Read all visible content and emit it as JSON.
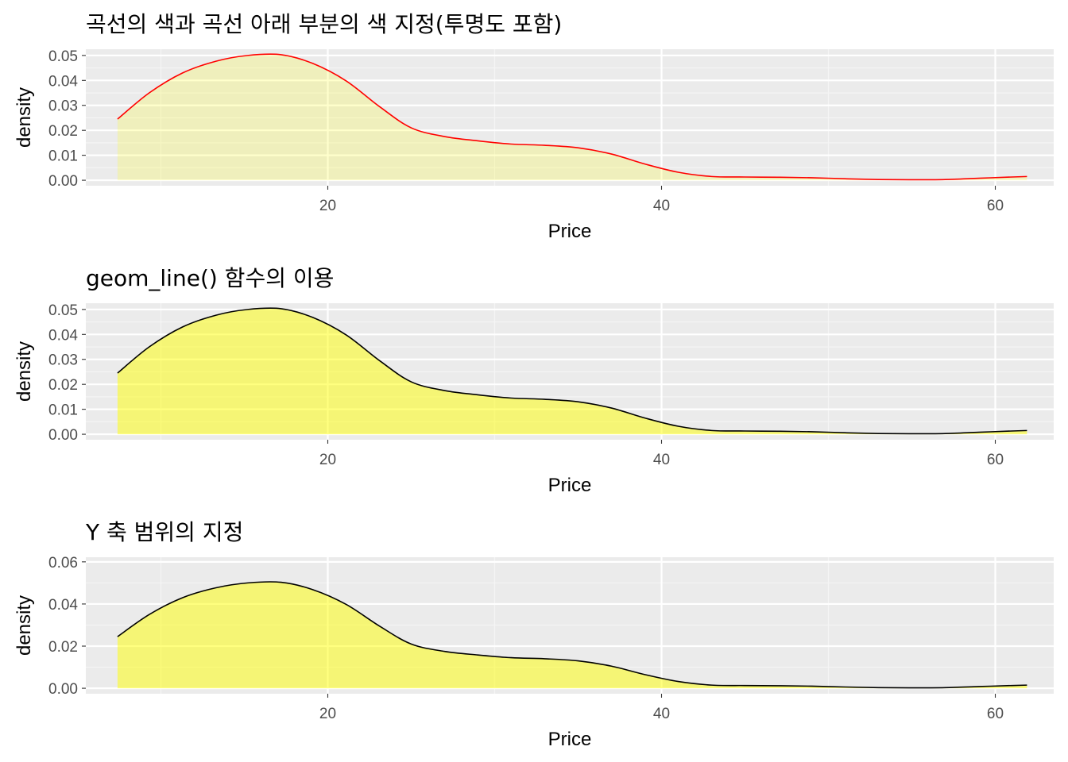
{
  "chart_data": [
    {
      "type": "area",
      "title": "곡선의 색과 곡선 아래 부분의 색 지정(투명도 포함)",
      "xlabel": "Price",
      "ylabel": "density",
      "xlim": [
        5.5,
        63.5
      ],
      "ylim": [
        -0.0022,
        0.0525
      ],
      "xticks": [
        20,
        40,
        60
      ],
      "xtick_labels": [
        "20",
        "40",
        "60"
      ],
      "yticks": [
        0.0,
        0.01,
        0.02,
        0.03,
        0.04,
        0.05
      ],
      "ytick_labels": [
        "0.00",
        "0.01",
        "0.02",
        "0.03",
        "0.04",
        "0.05"
      ],
      "grid": true,
      "line_color": "#ff0000",
      "fill_color": "#ffff00",
      "fill_alpha": 0.2,
      "x": [
        7.4,
        9.3,
        11.3,
        13.3,
        15.2,
        17.2,
        19.1,
        21.1,
        23.1,
        25.0,
        27.0,
        29.0,
        31.0,
        33.0,
        35.0,
        37.0,
        39.0,
        41.0,
        43.0,
        45.0,
        47.0,
        49.0,
        51.0,
        53.0,
        55.0,
        57.0,
        59.0,
        61.0,
        61.9
      ],
      "series": [
        {
          "values": [
            0.0245,
            0.035,
            0.043,
            0.0477,
            0.05,
            0.0503,
            0.0468,
            0.0398,
            0.0295,
            0.021,
            0.0175,
            0.0158,
            0.0145,
            0.014,
            0.013,
            0.0105,
            0.0065,
            0.0032,
            0.0015,
            0.0013,
            0.0012,
            0.001,
            0.0006,
            0.0003,
            0.0002,
            0.0003,
            0.0008,
            0.0013,
            0.0015
          ]
        }
      ]
    },
    {
      "type": "area",
      "title": "geom_line() 함수의 이용",
      "xlabel": "Price",
      "ylabel": "density",
      "xlim": [
        5.5,
        63.5
      ],
      "ylim": [
        -0.0022,
        0.0525
      ],
      "xticks": [
        20,
        40,
        60
      ],
      "xtick_labels": [
        "20",
        "40",
        "60"
      ],
      "yticks": [
        0.0,
        0.01,
        0.02,
        0.03,
        0.04,
        0.05
      ],
      "ytick_labels": [
        "0.00",
        "0.01",
        "0.02",
        "0.03",
        "0.04",
        "0.05"
      ],
      "grid": true,
      "line_color": "#000000",
      "fill_color": "#ffff00",
      "fill_alpha": 0.5,
      "x": [
        7.4,
        9.3,
        11.3,
        13.3,
        15.2,
        17.2,
        19.1,
        21.1,
        23.1,
        25.0,
        27.0,
        29.0,
        31.0,
        33.0,
        35.0,
        37.0,
        39.0,
        41.0,
        43.0,
        45.0,
        47.0,
        49.0,
        51.0,
        53.0,
        55.0,
        57.0,
        59.0,
        61.0,
        61.9
      ],
      "series": [
        {
          "values": [
            0.0245,
            0.035,
            0.043,
            0.0477,
            0.05,
            0.0503,
            0.0468,
            0.0398,
            0.0295,
            0.021,
            0.0175,
            0.0158,
            0.0145,
            0.014,
            0.013,
            0.0105,
            0.0065,
            0.0032,
            0.0015,
            0.0013,
            0.0012,
            0.001,
            0.0006,
            0.0003,
            0.0002,
            0.0003,
            0.0008,
            0.0013,
            0.0015
          ]
        }
      ]
    },
    {
      "type": "area",
      "title": "Y 축 범위의 지정",
      "xlabel": "Price",
      "ylabel": "density",
      "xlim": [
        5.5,
        63.5
      ],
      "ylim": [
        -0.0026,
        0.0622
      ],
      "xticks": [
        20,
        40,
        60
      ],
      "xtick_labels": [
        "20",
        "40",
        "60"
      ],
      "yticks": [
        0.0,
        0.02,
        0.04,
        0.06
      ],
      "ytick_labels": [
        "0.00",
        "0.02",
        "0.04",
        "0.06"
      ],
      "grid": true,
      "line_color": "#000000",
      "fill_color": "#ffff00",
      "fill_alpha": 0.5,
      "x": [
        7.4,
        9.3,
        11.3,
        13.3,
        15.2,
        17.2,
        19.1,
        21.1,
        23.1,
        25.0,
        27.0,
        29.0,
        31.0,
        33.0,
        35.0,
        37.0,
        39.0,
        41.0,
        43.0,
        45.0,
        47.0,
        49.0,
        51.0,
        53.0,
        55.0,
        57.0,
        59.0,
        61.0,
        61.9
      ],
      "series": [
        {
          "values": [
            0.0245,
            0.035,
            0.043,
            0.0477,
            0.05,
            0.0503,
            0.0468,
            0.0398,
            0.0295,
            0.021,
            0.0175,
            0.0158,
            0.0145,
            0.014,
            0.013,
            0.0105,
            0.0065,
            0.0032,
            0.0015,
            0.0013,
            0.0012,
            0.001,
            0.0006,
            0.0003,
            0.0002,
            0.0003,
            0.0008,
            0.0013,
            0.0015
          ]
        }
      ]
    }
  ]
}
